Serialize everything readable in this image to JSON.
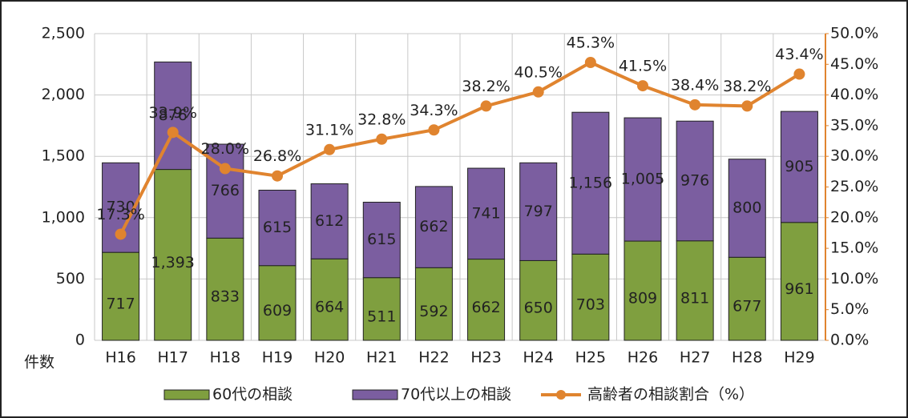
{
  "chart_data": {
    "type": "bar",
    "stacked": true,
    "y_axis_label": "件数",
    "categories": [
      "H16",
      "H17",
      "H18",
      "H19",
      "H20",
      "H21",
      "H22",
      "H23",
      "H24",
      "H25",
      "H26",
      "H27",
      "H28",
      "H29"
    ],
    "series": [
      {
        "name": "60代の相談",
        "color": "#7f9f3f",
        "values": [
          717,
          1393,
          833,
          609,
          664,
          511,
          592,
          662,
          650,
          703,
          809,
          811,
          677,
          961
        ],
        "value_labels": [
          "717",
          "1,393",
          "833",
          "609",
          "664",
          "511",
          "592",
          "662",
          "650",
          "703",
          "809",
          "811",
          "677",
          "961"
        ]
      },
      {
        "name": "70代以上の相談",
        "color": "#7b5ea0",
        "values": [
          730,
          876,
          766,
          615,
          612,
          615,
          662,
          741,
          797,
          1156,
          1005,
          976,
          800,
          905
        ],
        "value_labels": [
          "730",
          "876",
          "766",
          "615",
          "612",
          "615",
          "662",
          "741",
          "797",
          "1,156",
          "1,005",
          "976",
          "800",
          "905"
        ]
      },
      {
        "name": "高齢者の相談割合（%）",
        "color": "#e0842f",
        "type": "line",
        "axis": "y2",
        "values": [
          17.3,
          33.9,
          28.0,
          26.8,
          31.1,
          32.8,
          34.3,
          38.2,
          40.5,
          45.3,
          41.5,
          38.4,
          38.2,
          43.4
        ],
        "value_labels": [
          "17.3%",
          "33.9%",
          "28.0%",
          "26.8%",
          "31.1%",
          "32.8%",
          "34.3%",
          "38.2%",
          "40.5%",
          "45.3%",
          "41.5%",
          "38.4%",
          "38.2%",
          "43.4%"
        ]
      }
    ],
    "ylim": [
      0,
      2500
    ],
    "yticks": [
      0,
      500,
      {
        "value": 1000,
        "label": "1,000"
      },
      {
        "value": 1500,
        "label": "1,500"
      },
      {
        "value": 2000,
        "label": "2,000"
      },
      {
        "value": 2500,
        "label": "2,500"
      }
    ],
    "y2lim": [
      0,
      50
    ],
    "y2ticks": [
      {
        "value": 0,
        "label": "0.0%"
      },
      {
        "value": 5,
        "label": "5.0%"
      },
      {
        "value": 10,
        "label": "10.0%"
      },
      {
        "value": 15,
        "label": "15.0%"
      },
      {
        "value": 20,
        "label": "20.0%"
      },
      {
        "value": 25,
        "label": "25.0%"
      },
      {
        "value": 30,
        "label": "30.0%"
      },
      {
        "value": 35,
        "label": "35.0%"
      },
      {
        "value": 40,
        "label": "40.0%"
      },
      {
        "value": 45,
        "label": "45.0%"
      },
      {
        "value": 50,
        "label": "50.0%"
      }
    ],
    "grid": true,
    "legend": "bottom"
  }
}
